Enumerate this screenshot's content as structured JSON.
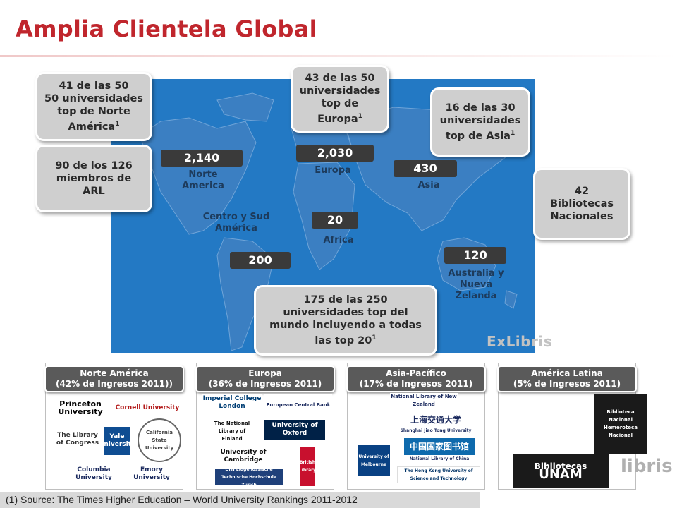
{
  "title": "Amplia Clientela Global",
  "colors": {
    "title": "#c0262d",
    "ocean": "#2379c4",
    "land": "#2f6fb3",
    "count_box": "#3a3a3a",
    "bubble": "#cfcfcf"
  },
  "bubbles": {
    "north_america_top": {
      "lines": [
        "41 de las 50",
        "50 universidades",
        "top de Norte"
      ],
      "last": "América",
      "sup": "1"
    },
    "arl": {
      "lines": [
        "90 de los 126",
        "miembros de",
        "ARL"
      ]
    },
    "europe_top": {
      "lines": [
        "43 de las 50",
        "universidades",
        "top de"
      ],
      "last": "Europa",
      "sup": "1"
    },
    "asia_top": {
      "lines": [
        "16 de las 30",
        "universidades"
      ],
      "last": "top de Asia",
      "sup": "1"
    },
    "national": {
      "lines": [
        "42",
        "Bibliotecas",
        "Nacionales"
      ]
    },
    "world_top": {
      "lines": [
        "175 de las 250",
        "universidades top del",
        "mundo incluyendo a todas"
      ],
      "last": "las top 20",
      "sup": "1"
    }
  },
  "counts": {
    "north_america": "2,140",
    "europe": "2,030",
    "asia": "430",
    "africa": "20",
    "latin_america": "200",
    "australia": "120"
  },
  "regions": {
    "north_america": [
      "Norte",
      "America"
    ],
    "europe": [
      "Europa"
    ],
    "asia": [
      "Asia"
    ],
    "latin_america": [
      "Centro y Sud",
      "América"
    ],
    "africa": [
      "Africa"
    ],
    "australia": [
      "Australia y",
      "Nueva",
      "Zelanda"
    ]
  },
  "watermark": "ExLibris",
  "panels": [
    {
      "line1": "Norte América",
      "line2": "(42% de Ingresos  2011))",
      "logos": [
        "Princeton University",
        "Cornell University",
        "The Library of Congress",
        "Yale University",
        "California State University",
        "Columbia University",
        "Emory University"
      ]
    },
    {
      "line1": "Europa",
      "line2": "(36% de Ingresos 2011)",
      "logos": [
        "Imperial College London",
        "European Central Bank",
        "The National Library of Finland",
        "University of Oxford",
        "University of Cambridge",
        "British Library",
        "ETH Eidgenössische Technische Hochschule Zürich"
      ]
    },
    {
      "line1": "Asia-Pacífico",
      "line2": "(17% de Ingresos 2011)",
      "logos": [
        "National Library of New Zealand",
        "上海交通大学",
        "Shanghai Jiao Tong University",
        "中国国家图书馆",
        "National Library of China",
        "University of Melbourne",
        "The Hong Kong University of Science and Technology"
      ]
    },
    {
      "line1": "América Latina",
      "line2": "(5% de Ingresos 2011)",
      "logos": [
        "Biblioteca Nacional Hemeroteca Nacional",
        "Bibliotecas",
        "UNAM"
      ]
    }
  ],
  "libris": "libris",
  "footer": "(1) Source: The Times Higher Education – World University Rankings 2011-2012"
}
